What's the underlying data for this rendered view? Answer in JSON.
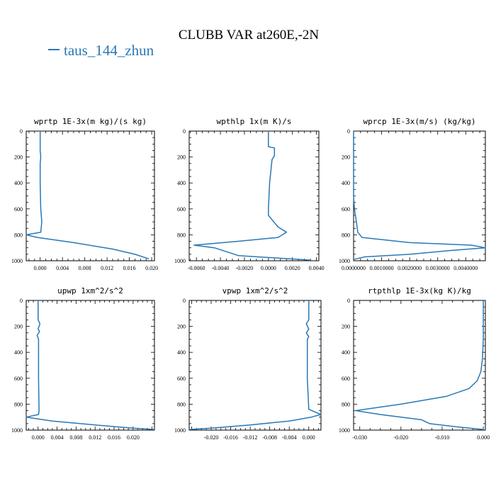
{
  "figure": {
    "title": "CLUBB VAR at260E,-2N",
    "legend_label": "taus_144_zhun",
    "line_color": "#2a78b5"
  },
  "chart_data": [
    {
      "type": "line",
      "title": "wprtp  1E-3x(m kg)/(s kg)",
      "xlim": [
        -0.0025,
        0.0205
      ],
      "ylim": [
        1000,
        0
      ],
      "xticks": [
        0.0,
        0.004,
        0.008,
        0.012,
        0.016,
        0.02
      ],
      "xtick_labels": [
        "0.000",
        "0.004",
        "0.008",
        "0.012",
        "0.016",
        "0.020"
      ],
      "yticks": [
        0,
        200,
        400,
        600,
        800,
        1000
      ],
      "ytick_labels": [
        "0",
        "200",
        "400",
        "600",
        "800",
        "1000"
      ],
      "series": [
        {
          "x": [
            0.0,
            0.0,
            0.0001,
            0.0,
            0.0,
            0.0001,
            0.0003,
            0.0001,
            -0.0025,
            -0.0005,
            0.006,
            0.013,
            0.017,
            0.0195
          ],
          "y": [
            0,
            150,
            200,
            250,
            400,
            600,
            700,
            780,
            800,
            820,
            860,
            910,
            950,
            985
          ]
        }
      ]
    },
    {
      "type": "line",
      "title": "wpthlp  1x(m K)/s",
      "xlim": [
        -0.0066,
        0.0042
      ],
      "ylim": [
        1000,
        0
      ],
      "xticks": [
        -0.006,
        -0.004,
        -0.002,
        0.0,
        0.002,
        0.004
      ],
      "xtick_labels": [
        "-0.0060",
        "-0.0040",
        "-0.0020",
        "0.0000",
        "0.0020",
        "0.0040"
      ],
      "yticks": [
        0,
        200,
        400,
        600,
        800,
        1000
      ],
      "ytick_labels": [
        "0",
        "200",
        "400",
        "600",
        "800",
        "1000"
      ],
      "series": [
        {
          "x": [
            0.0,
            0.0,
            0.0005,
            0.0005,
            0.0003,
            0.0001,
            0.0,
            0.0,
            0.0008,
            0.0015,
            0.0008,
            -0.0025,
            -0.0062,
            -0.0045,
            -0.0035,
            -0.0025,
            0.0035
          ],
          "y": [
            0,
            120,
            130,
            190,
            220,
            400,
            600,
            650,
            740,
            780,
            820,
            850,
            880,
            900,
            930,
            960,
            995
          ]
        }
      ]
    },
    {
      "type": "line",
      "title": "wprcp  1E-3x(m/s) (kg/kg)",
      "xlim": [
        0.0,
        0.0047
      ],
      "ylim": [
        1000,
        0
      ],
      "xticks": [
        0.0,
        0.001,
        0.002,
        0.003,
        0.004
      ],
      "xtick_labels": [
        "0.0000000",
        "0.0010000",
        "0.0020000",
        "0.0030000",
        "0.0040000"
      ],
      "yticks": [
        0,
        200,
        400,
        600,
        800,
        1000
      ],
      "ytick_labels": [
        "0",
        "200",
        "400",
        "600",
        "800",
        "1000"
      ],
      "series": [
        {
          "x": [
            0.0,
            0.0,
            3e-05,
            0.0001,
            0.00015,
            0.0003,
            0.002,
            0.0042,
            0.0047,
            0.0035,
            0.002,
            0.0004,
            0.0
          ],
          "y": [
            0,
            500,
            600,
            700,
            780,
            820,
            860,
            880,
            900,
            920,
            950,
            970,
            990
          ]
        }
      ]
    },
    {
      "type": "line",
      "title": "upwp  1xm^2/s^2",
      "xlim": [
        -0.0025,
        0.0245
      ],
      "ylim": [
        1000,
        0
      ],
      "xticks": [
        0.0,
        0.004,
        0.008,
        0.012,
        0.016,
        0.02
      ],
      "xtick_labels": [
        "0.000",
        "0.004",
        "0.008",
        "0.012",
        "0.016",
        "0.020"
      ],
      "yticks": [
        0,
        200,
        400,
        600,
        800,
        1000
      ],
      "ytick_labels": [
        "0",
        "200",
        "400",
        "600",
        "800",
        "1000"
      ],
      "series": [
        {
          "x": [
            0.0,
            0.0,
            0.0004,
            0.0,
            0.0003,
            -0.0002,
            0.0001,
            0.0001,
            0.0002,
            0.0001,
            -0.0025,
            0.003,
            0.012,
            0.02,
            0.0245
          ],
          "y": [
            0,
            150,
            180,
            220,
            240,
            270,
            300,
            600,
            850,
            880,
            900,
            930,
            960,
            985,
            995
          ]
        }
      ]
    },
    {
      "type": "line",
      "title": "vpwp  1xm^2/s^2",
      "xlim": [
        -0.0245,
        0.0025
      ],
      "ylim": [
        1000,
        0
      ],
      "xticks": [
        -0.02,
        -0.016,
        -0.012,
        -0.008,
        -0.004,
        0.0
      ],
      "xtick_labels": [
        "-0.020",
        "-0.016",
        "-0.012",
        "-0.008",
        "-0.004",
        "0.000"
      ],
      "yticks": [
        0,
        200,
        400,
        600,
        800,
        1000
      ],
      "ytick_labels": [
        "0",
        "200",
        "400",
        "600",
        "800",
        "1000"
      ],
      "series": [
        {
          "x": [
            0.0,
            0.0,
            -0.0005,
            0.0,
            -0.0005,
            0.0,
            -0.0003,
            -0.0003,
            0.0,
            0.0025,
            0.0005,
            -0.004,
            -0.012,
            -0.02,
            -0.0245
          ],
          "y": [
            0,
            150,
            180,
            220,
            250,
            280,
            300,
            600,
            840,
            880,
            900,
            930,
            960,
            985,
            995
          ]
        }
      ]
    },
    {
      "type": "line",
      "title": "rtpthlp  1E-3x(kg K)/kg",
      "xlim": [
        -0.0315,
        0.0005
      ],
      "ylim": [
        1000,
        0
      ],
      "xticks": [
        -0.03,
        -0.02,
        -0.01,
        0.0
      ],
      "xtick_labels": [
        "-0.030",
        "-0.020",
        "-0.010",
        "0.000"
      ],
      "yticks": [
        0,
        200,
        400,
        600,
        800,
        1000
      ],
      "ytick_labels": [
        "0",
        "200",
        "400",
        "600",
        "800",
        "1000"
      ],
      "series": [
        {
          "x": [
            0.0,
            0.0,
            -0.0002,
            -0.0006,
            -0.0015,
            -0.0035,
            -0.009,
            -0.02,
            -0.031,
            -0.025,
            -0.015,
            -0.013,
            -0.005,
            0.0
          ],
          "y": [
            0,
            300,
            450,
            550,
            620,
            680,
            740,
            800,
            850,
            880,
            920,
            950,
            980,
            995
          ]
        }
      ]
    }
  ]
}
